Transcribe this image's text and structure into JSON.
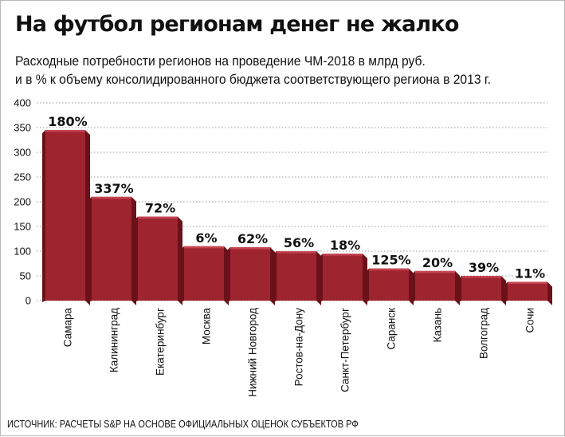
{
  "title": "На футбол регионам денег не жалко",
  "subtitle": [
    "Расходные потребности регионов на проведение ЧМ-2018 в млрд руб.",
    "и в % к объему консолидированного бюджета соответствующего региона в 2013 г."
  ],
  "source": "ИСТОЧНИК: РАСЧЕТЫ S&P НА ОСНОВЕ ОФИЦИАЛЬНЫХ ОЦЕНОК СУБЪЕКТОВ РФ",
  "colors": {
    "bar_front": "#9e2430",
    "bar_top": "#c4444f",
    "bar_side": "#6a1119",
    "grid": "#9a9a9a"
  },
  "chart_data": {
    "type": "bar",
    "title": "На футбол регионам денег не жалко",
    "ylabel": "",
    "xlabel": "",
    "ylim": [
      0,
      400
    ],
    "yticks": [
      "0",
      "50",
      "100",
      "150",
      "200",
      "250",
      "300",
      "350",
      "400"
    ],
    "grid": true,
    "style": "3d",
    "categories": [
      "Самара",
      "Калининград",
      "Екатеринбург",
      "Москва",
      "Нижний Новгород",
      "Ростов-на-Дону",
      "Санкт-Петербург",
      "Саранск",
      "Казань",
      "Волгоград",
      "Сочи"
    ],
    "values": [
      345,
      210,
      170,
      110,
      108,
      100,
      95,
      65,
      60,
      50,
      38
    ],
    "data_labels": [
      "180%",
      "337%",
      "72%",
      "6%",
      "62%",
      "56%",
      "18%",
      "125%",
      "20%",
      "39%",
      "11%"
    ]
  }
}
